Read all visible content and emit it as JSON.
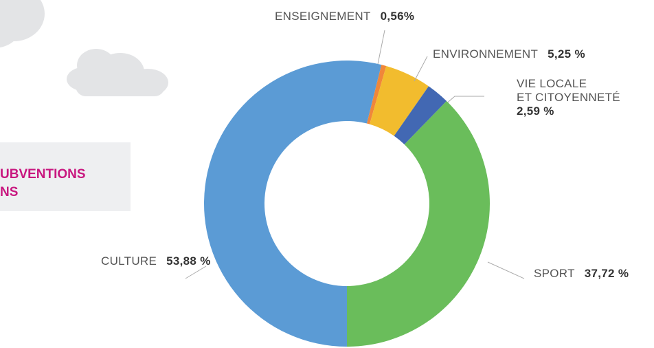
{
  "chart_data": {
    "type": "pie",
    "donut": true,
    "title": [
      "UBVENTIONS",
      "NS"
    ],
    "categories": [
      "ENSEIGNEMENT",
      "ENVIRONNEMENT",
      "VIE LOCALE\nET CITOYENNETÉ",
      "SPORT",
      "CULTURE"
    ],
    "values": [
      0.56,
      5.25,
      2.59,
      37.72,
      53.88
    ],
    "value_labels": [
      "0,56%",
      "5,25 %",
      "2,59 %",
      "37,72 %",
      "53,88 %"
    ],
    "colors": [
      "#f0873a",
      "#f2bc2e",
      "#4268b3",
      "#6abd5b",
      "#5b9bd5"
    ]
  }
}
